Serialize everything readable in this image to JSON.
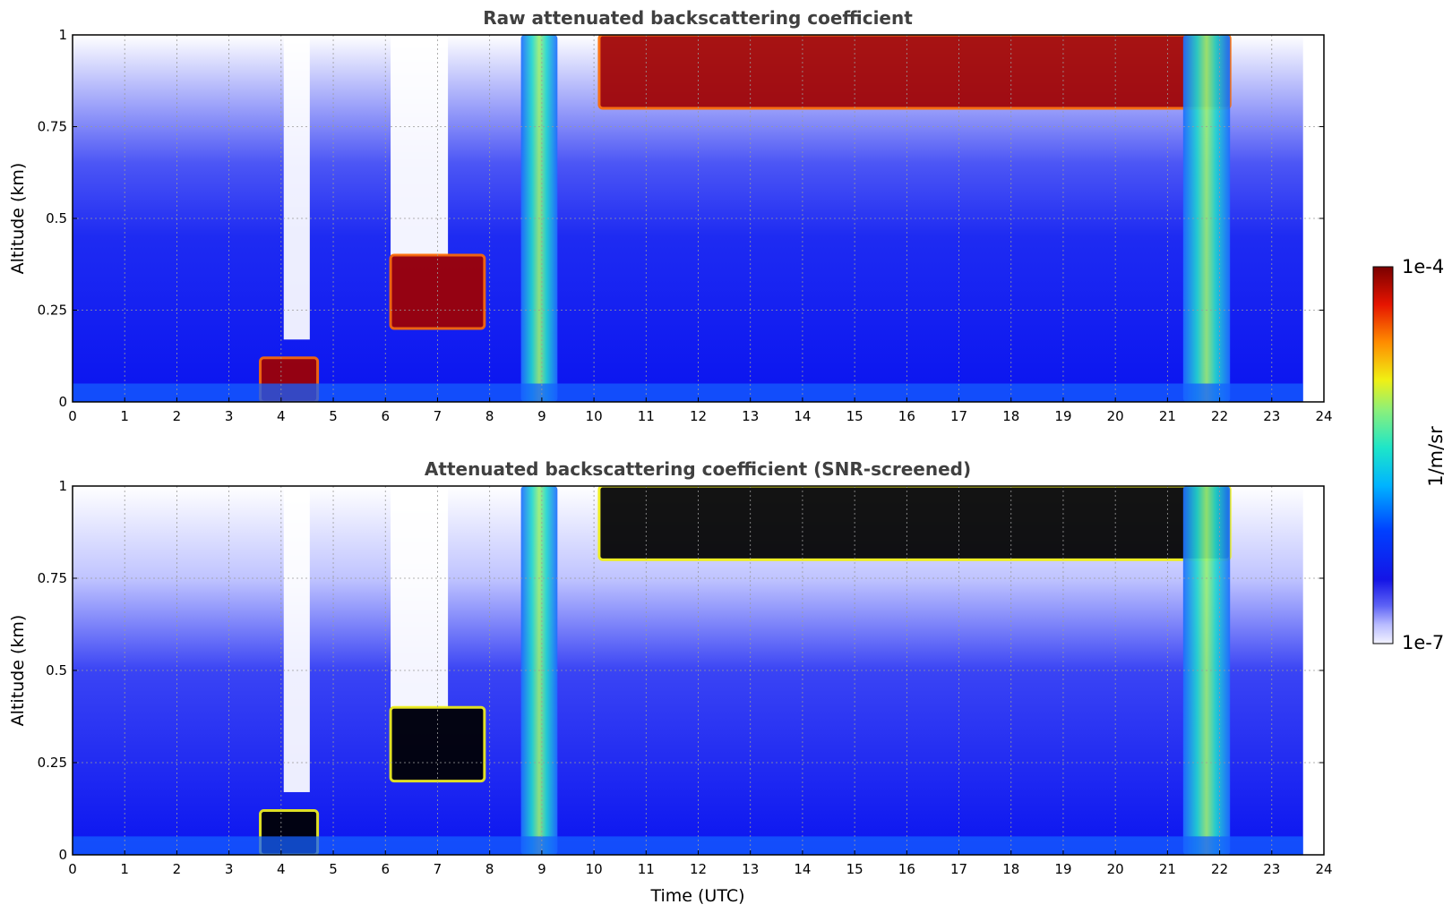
{
  "chart_data": [
    {
      "type": "heatmap",
      "title": "Raw attenuated backscattering coefficient",
      "xlabel": "",
      "ylabel": "Altitude (km)",
      "xlim": [
        0,
        24
      ],
      "ylim": [
        0,
        1
      ],
      "xticks": [
        "0",
        "1",
        "2",
        "3",
        "4",
        "5",
        "6",
        "7",
        "8",
        "9",
        "10",
        "11",
        "12",
        "13",
        "14",
        "15",
        "16",
        "17",
        "18",
        "19",
        "20",
        "21",
        "22",
        "23",
        "24"
      ],
      "yticks": [
        "0",
        "0.25",
        "0.5",
        "0.75",
        "1"
      ],
      "grid": true,
      "data_end_time": 23.6,
      "features": [
        {
          "x": [
            6.1,
            7.9
          ],
          "y": [
            0.2,
            0.4
          ],
          "level": "high"
        },
        {
          "x": [
            8.6,
            9.3
          ],
          "y": [
            0.0,
            1.0
          ],
          "level": "medium"
        },
        {
          "x": [
            10.1,
            22.2
          ],
          "y": [
            0.8,
            1.0
          ],
          "level": "high"
        },
        {
          "x": [
            3.6,
            4.7
          ],
          "y": [
            0.0,
            0.12
          ],
          "level": "high"
        },
        {
          "x": [
            21.3,
            22.2
          ],
          "y": [
            0.0,
            1.0
          ],
          "level": "medium"
        }
      ]
    },
    {
      "type": "heatmap",
      "title": "Attenuated backscattering coefficient (SNR-screened)",
      "xlabel": "Time (UTC)",
      "ylabel": "Altitude (km)",
      "xlim": [
        0,
        24
      ],
      "ylim": [
        0,
        1
      ],
      "xticks": [
        "0",
        "1",
        "2",
        "3",
        "4",
        "5",
        "6",
        "7",
        "8",
        "9",
        "10",
        "11",
        "12",
        "13",
        "14",
        "15",
        "16",
        "17",
        "18",
        "19",
        "20",
        "21",
        "22",
        "23",
        "24"
      ],
      "yticks": [
        "0",
        "0.25",
        "0.5",
        "0.75",
        "1"
      ],
      "grid": true,
      "data_end_time": 23.6,
      "features": [
        {
          "x": [
            6.1,
            7.9
          ],
          "y": [
            0.2,
            0.4
          ],
          "level": "saturated"
        },
        {
          "x": [
            8.6,
            9.3
          ],
          "y": [
            0.0,
            1.0
          ],
          "level": "medium"
        },
        {
          "x": [
            10.1,
            22.2
          ],
          "y": [
            0.8,
            1.0
          ],
          "level": "saturated"
        },
        {
          "x": [
            3.6,
            4.7
          ],
          "y": [
            0.0,
            0.12
          ],
          "level": "saturated"
        },
        {
          "x": [
            21.3,
            22.2
          ],
          "y": [
            0.0,
            1.0
          ],
          "level": "medium"
        }
      ]
    }
  ],
  "colorbar": {
    "max_label": "1e-4",
    "min_label": "1e-7",
    "unit": "1/m/sr",
    "colormap": "jet",
    "scale": "log"
  }
}
